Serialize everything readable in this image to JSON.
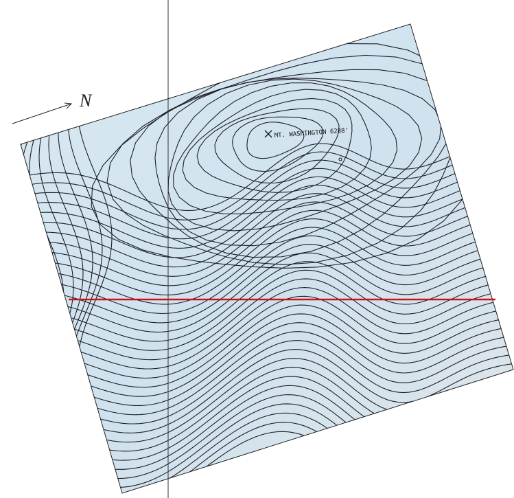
{
  "north_label": "N",
  "summit_label": "MT. WASHINGTON 6288'"
}
